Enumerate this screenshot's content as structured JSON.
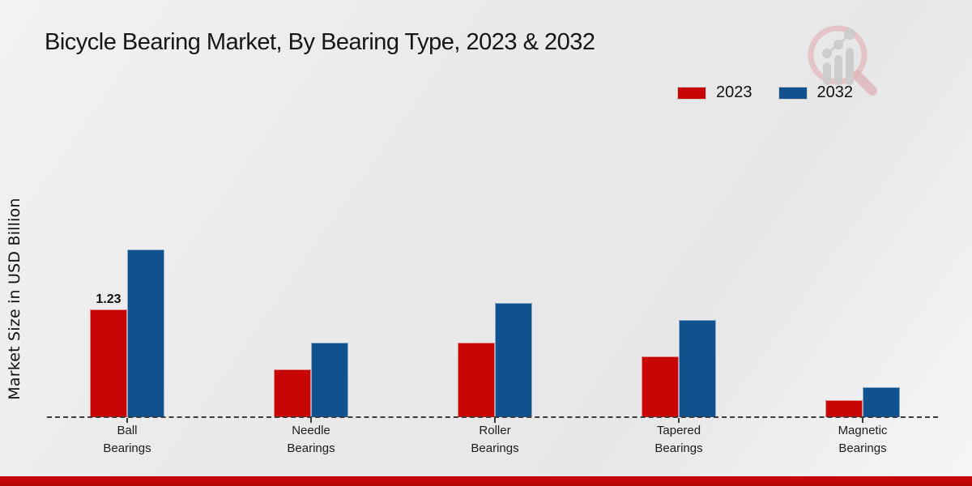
{
  "page": {
    "title": "Bicycle Bearing Market, By Bearing Type, 2023 & 2032"
  },
  "y_axis": {
    "label": "Market Size in USD Billion"
  },
  "legend": {
    "items": [
      {
        "label": "2023",
        "color": "#c90606"
      },
      {
        "label": "2032",
        "color": "#10518e"
      }
    ]
  },
  "icons": {
    "watermark": "magnifier-growth-chart-logo"
  },
  "footer": {
    "band_color": "#c40505"
  },
  "chart_data": {
    "type": "bar",
    "title": "Bicycle Bearing Market, By Bearing Type, 2023 & 2032",
    "xlabel": "",
    "ylabel": "Market Size in USD Billion",
    "categories": [
      "Ball Bearings",
      "Needle Bearings",
      "Roller Bearings",
      "Tapered Bearings",
      "Magnetic Bearings"
    ],
    "series": [
      {
        "name": "2023",
        "color": "#c90606",
        "values": [
          1.23,
          0.55,
          0.85,
          0.69,
          0.19
        ]
      },
      {
        "name": "2032",
        "color": "#10518e",
        "values": [
          1.92,
          0.85,
          1.31,
          1.11,
          0.34
        ]
      }
    ],
    "annotations": [
      {
        "series": "2023",
        "category": "Ball Bearings",
        "text": "1.23"
      }
    ],
    "ylim": [
      0,
      2.2
    ],
    "grid": false,
    "legend_position": "top-right",
    "baseline_style": "dashed"
  }
}
